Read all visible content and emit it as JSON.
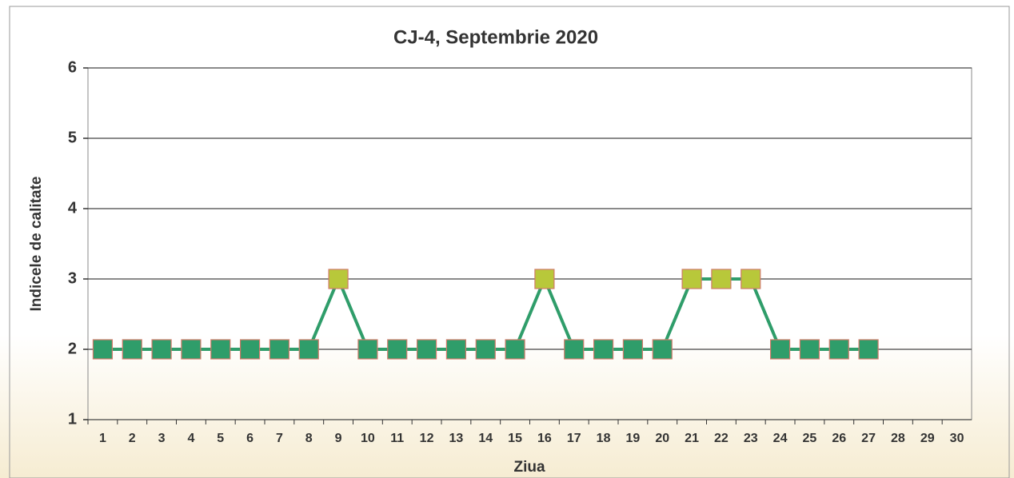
{
  "chart_data": {
    "type": "line",
    "title": "CJ-4, Septembrie 2020",
    "x_label": "Ziua",
    "y_label": "Indicele de calitate",
    "categories": [
      "1",
      "2",
      "3",
      "4",
      "5",
      "6",
      "7",
      "8",
      "9",
      "10",
      "11",
      "12",
      "13",
      "14",
      "15",
      "16",
      "17",
      "18",
      "19",
      "20",
      "21",
      "22",
      "23",
      "24",
      "25",
      "26",
      "27",
      "28",
      "29",
      "30"
    ],
    "series": [
      {
        "name": "CJ-4",
        "color": "#2f9d6a",
        "values": [
          2,
          2,
          2,
          2,
          2,
          2,
          2,
          2,
          3,
          2,
          2,
          2,
          2,
          2,
          2,
          3,
          2,
          2,
          2,
          2,
          3,
          3,
          3,
          2,
          2,
          2,
          2,
          null,
          null,
          null
        ],
        "marker_colors": [
          "#2f9d6a",
          "#2f9d6a",
          "#2f9d6a",
          "#2f9d6a",
          "#2f9d6a",
          "#2f9d6a",
          "#2f9d6a",
          "#2f9d6a",
          "#b8c83a",
          "#2f9d6a",
          "#2f9d6a",
          "#2f9d6a",
          "#2f9d6a",
          "#2f9d6a",
          "#2f9d6a",
          "#b8c83a",
          "#2f9d6a",
          "#2f9d6a",
          "#2f9d6a",
          "#2f9d6a",
          "#b8c83a",
          "#b8c83a",
          "#b8c83a",
          "#2f9d6a",
          "#2f9d6a",
          "#2f9d6a",
          "#2f9d6a",
          null,
          null,
          null
        ]
      }
    ],
    "ylim": [
      1,
      6
    ],
    "yticks": [
      1,
      2,
      3,
      4,
      5,
      6
    ],
    "grid": true
  }
}
